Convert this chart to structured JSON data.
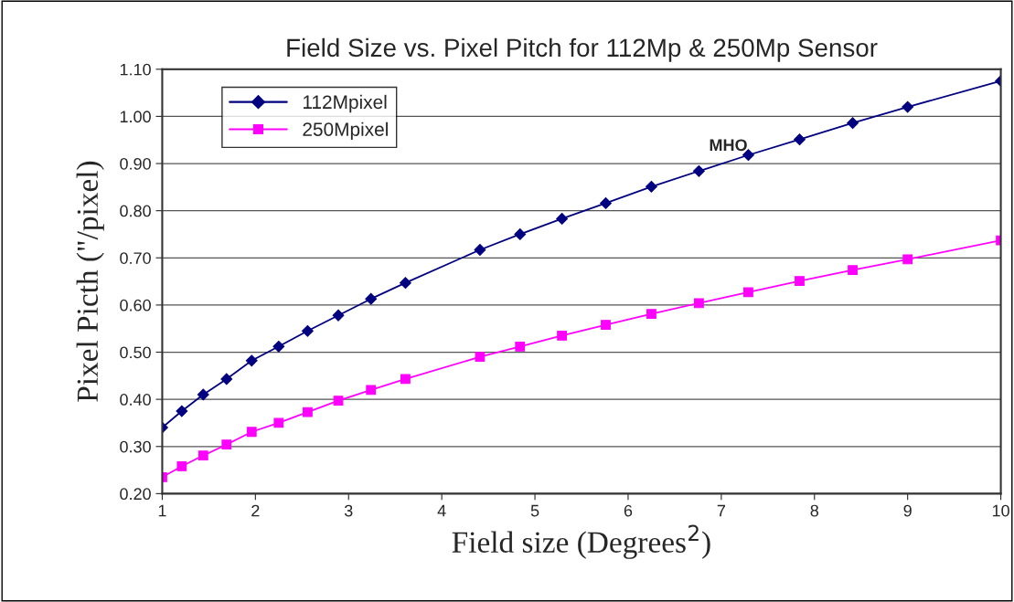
{
  "chart_data": {
    "type": "line",
    "title": "Field Size vs. Pixel Pitch for 112Mp & 250Mp Sensor",
    "xlabel": "Field size (Degrees$^{2}$)",
    "ylabel": "Pixel Picth (\"/pixel)",
    "x": [
      1.0,
      1.21,
      1.44,
      1.69,
      1.96,
      2.25,
      2.56,
      2.89,
      3.24,
      3.61,
      4.41,
      4.84,
      5.29,
      5.76,
      6.25,
      6.76,
      7.29,
      7.84,
      8.41,
      9.0,
      10.0
    ],
    "series": [
      {
        "name": "112Mpixel",
        "color": "#000080",
        "marker": "diamond",
        "values": [
          0.34,
          0.375,
          0.41,
          0.443,
          0.482,
          0.512,
          0.545,
          0.578,
          0.613,
          0.647,
          0.717,
          0.75,
          0.783,
          0.816,
          0.851,
          0.884,
          0.918,
          0.951,
          0.986,
          1.02,
          1.075
        ]
      },
      {
        "name": "250Mpixel",
        "color": "#ff00ff",
        "marker": "square",
        "values": [
          0.235,
          0.258,
          0.281,
          0.304,
          0.331,
          0.35,
          0.373,
          0.397,
          0.42,
          0.443,
          0.49,
          0.512,
          0.535,
          0.558,
          0.581,
          0.604,
          0.627,
          0.651,
          0.674,
          0.697,
          0.737
        ]
      }
    ],
    "annotations": [
      "MHO"
    ],
    "xlim": [
      1,
      10
    ],
    "xticks": [
      1,
      2,
      3,
      4,
      5,
      6,
      7,
      8,
      9,
      10
    ],
    "ylim": [
      0.2,
      1.1
    ],
    "yticks": [
      {
        "value": 0.2,
        "label": "0.20"
      },
      {
        "value": 0.3,
        "label": "0.30"
      },
      {
        "value": 0.4,
        "label": "0.40"
      },
      {
        "value": 0.5,
        "label": "0.50"
      },
      {
        "value": 0.6,
        "label": "0.60"
      },
      {
        "value": 0.7,
        "label": "0.70"
      },
      {
        "value": 0.8,
        "label": "0.80"
      },
      {
        "value": 0.9,
        "label": "0.90"
      },
      {
        "value": 1.0,
        "label": "1.00"
      },
      {
        "value": 1.1,
        "label": "1.10"
      }
    ],
    "grid": "y",
    "legend": "top left",
    "line_style": "solid"
  }
}
